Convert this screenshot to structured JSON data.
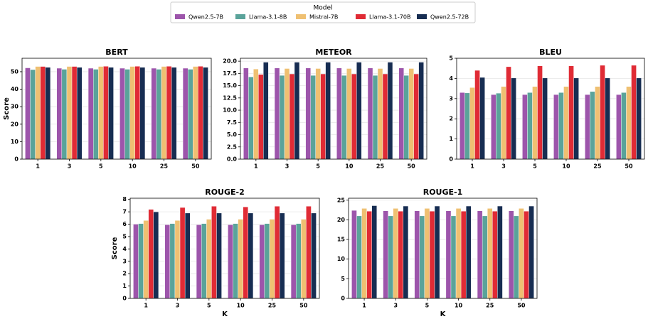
{
  "legend": {
    "title": "Model",
    "entries": [
      {
        "name": "Qwen2.5-7B",
        "color": "#9d55ab"
      },
      {
        "name": "Llama-3.1-8B",
        "color": "#5aa39a"
      },
      {
        "name": "Mistral-7B",
        "color": "#efc072"
      },
      {
        "name": "Llama-3.1-70B",
        "color": "#e02b35"
      },
      {
        "name": "Qwen2.5-72B",
        "color": "#172d52"
      }
    ]
  },
  "chart_data": [
    {
      "type": "bar",
      "title": "BERT",
      "ylabel": "Score",
      "categories": [
        "1",
        "3",
        "5",
        "10",
        "25",
        "50"
      ],
      "series": [
        {
          "values": [
            52.2,
            52.0,
            52.0,
            52.0,
            52.0,
            52.0
          ]
        },
        {
          "values": [
            51.2,
            51.4,
            51.4,
            51.4,
            51.4,
            51.4
          ]
        },
        {
          "values": [
            53.0,
            53.0,
            53.0,
            53.0,
            53.0,
            53.0
          ]
        },
        {
          "values": [
            53.0,
            53.0,
            53.1,
            53.1,
            53.1,
            53.1
          ]
        },
        {
          "values": [
            52.5,
            52.5,
            52.5,
            52.5,
            52.5,
            52.5
          ]
        }
      ],
      "ylim": [
        0,
        57.7
      ],
      "yticks": [
        0,
        10,
        20,
        30,
        40,
        50
      ],
      "grid": true
    },
    {
      "type": "bar",
      "title": "METEOR",
      "categories": [
        "1",
        "3",
        "5",
        "10",
        "25",
        "50"
      ],
      "series": [
        {
          "values": [
            18.6,
            18.6,
            18.6,
            18.6,
            18.6,
            18.6
          ]
        },
        {
          "values": [
            16.8,
            17.1,
            17.1,
            17.1,
            17.1,
            17.1
          ]
        },
        {
          "values": [
            18.4,
            18.5,
            18.5,
            18.5,
            18.5,
            18.5
          ]
        },
        {
          "values": [
            17.3,
            17.4,
            17.4,
            17.4,
            17.4,
            17.4
          ]
        },
        {
          "values": [
            19.8,
            19.8,
            19.8,
            19.8,
            19.8,
            19.8
          ]
        }
      ],
      "ylim": [
        0,
        20.6
      ],
      "yticks": [
        {
          "value": 0,
          "label": "0.0"
        },
        {
          "value": 2.5,
          "label": "2.5"
        },
        {
          "value": 5,
          "label": "5.0"
        },
        {
          "value": 7.5,
          "label": "7.5"
        },
        {
          "value": 10,
          "label": "10.0"
        },
        {
          "value": 12.5,
          "label": "12.5"
        },
        {
          "value": 15,
          "label": "15.0"
        },
        {
          "value": 17.5,
          "label": "17.5"
        },
        {
          "value": 20,
          "label": "20.0"
        }
      ],
      "grid": true
    },
    {
      "type": "bar",
      "title": "BLEU",
      "categories": [
        "1",
        "3",
        "5",
        "10",
        "25",
        "50"
      ],
      "series": [
        {
          "values": [
            3.3,
            3.2,
            3.2,
            3.2,
            3.2,
            3.2
          ]
        },
        {
          "values": [
            3.28,
            3.27,
            3.3,
            3.3,
            3.35,
            3.3
          ]
        },
        {
          "values": [
            3.55,
            3.6,
            3.6,
            3.6,
            3.6,
            3.6
          ]
        },
        {
          "values": [
            4.4,
            4.58,
            4.62,
            4.62,
            4.65,
            4.65
          ]
        },
        {
          "values": [
            4.05,
            4.02,
            4.02,
            4.02,
            4.02,
            4.02
          ]
        }
      ],
      "ylim": [
        0,
        5
      ],
      "yticks": [
        0,
        1,
        2,
        3,
        4,
        5
      ],
      "grid": true
    },
    {
      "type": "bar",
      "title": "ROUGE-2",
      "ylabel": "Score",
      "xlabel": "K",
      "categories": [
        "1",
        "3",
        "5",
        "10",
        "25",
        "50"
      ],
      "series": [
        {
          "values": [
            6.0,
            5.95,
            5.95,
            5.95,
            5.95,
            5.95
          ]
        },
        {
          "values": [
            6.05,
            6.05,
            6.05,
            6.05,
            6.05,
            6.05
          ]
        },
        {
          "values": [
            6.3,
            6.3,
            6.4,
            6.4,
            6.4,
            6.4
          ]
        },
        {
          "values": [
            7.2,
            7.35,
            7.45,
            7.4,
            7.45,
            7.45
          ]
        },
        {
          "values": [
            7.0,
            6.9,
            6.9,
            6.9,
            6.9,
            6.9
          ]
        }
      ],
      "ylim": [
        0,
        8.1
      ],
      "yticks": [
        0,
        1,
        2,
        3,
        4,
        5,
        6,
        7,
        8
      ],
      "grid": true
    },
    {
      "type": "bar",
      "title": "ROUGE-1",
      "xlabel": "K",
      "categories": [
        "1",
        "3",
        "5",
        "10",
        "25",
        "50"
      ],
      "series": [
        {
          "values": [
            22.4,
            22.3,
            22.3,
            22.3,
            22.3,
            22.3
          ]
        },
        {
          "values": [
            21.0,
            21.0,
            21.0,
            21.0,
            21.0,
            21.0
          ]
        },
        {
          "values": [
            22.9,
            22.9,
            22.9,
            22.9,
            22.9,
            22.9
          ]
        },
        {
          "values": [
            22.2,
            22.2,
            22.2,
            22.2,
            22.2,
            22.2
          ]
        },
        {
          "values": [
            23.6,
            23.5,
            23.5,
            23.5,
            23.5,
            23.5
          ]
        }
      ],
      "ylim": [
        0,
        25.5
      ],
      "yticks": [
        0,
        5,
        10,
        15,
        20,
        25
      ],
      "grid": true
    }
  ]
}
